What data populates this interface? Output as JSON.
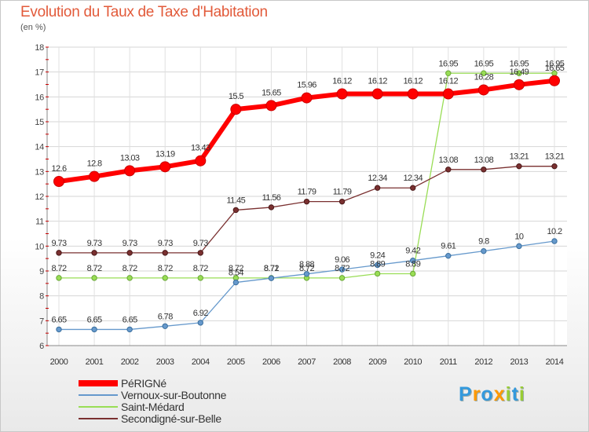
{
  "page": {
    "title": "Evolution du Taux de Taxe d'Habitation",
    "subtitle": "(en %)"
  },
  "chart_data": {
    "type": "line",
    "title": "Evolution du Taux de Taxe d'Habitation",
    "ylabel": "(en %)",
    "xlabel": "",
    "x": [
      2000,
      2001,
      2002,
      2003,
      2004,
      2005,
      2006,
      2007,
      2008,
      2009,
      2010,
      2011,
      2012,
      2013,
      2014
    ],
    "ylim": [
      6,
      18
    ],
    "yticks": [
      6,
      7,
      8,
      9,
      10,
      11,
      12,
      13,
      14,
      15,
      16,
      17,
      18
    ],
    "grid": true,
    "legend_position": "bottom-left",
    "series": [
      {
        "name": "PéRIGNé",
        "color": "#ff0000",
        "values": [
          12.6,
          12.8,
          13.03,
          13.19,
          13.43,
          15.5,
          15.65,
          15.96,
          16.12,
          16.12,
          16.12,
          16.12,
          16.28,
          16.49,
          16.65
        ],
        "labels": [
          "12.6",
          "12.8",
          "13.03",
          "13.19",
          "13.43",
          "15.5",
          "15.65",
          "15.96",
          "16.12",
          "16.12",
          "16.12",
          "16.12",
          "16.28",
          "16.49",
          "16.65"
        ]
      },
      {
        "name": "Vernoux-sur-Boutonne",
        "color": "#6699cc",
        "values": [
          6.65,
          6.65,
          6.65,
          6.78,
          6.92,
          8.54,
          8.71,
          8.88,
          9.06,
          9.24,
          9.42,
          9.61,
          9.8,
          10,
          10.2
        ],
        "labels": [
          "6.65",
          "6.65",
          "6.65",
          "6.78",
          "6.92",
          "8.54",
          "8.71",
          "8.88",
          "9.06",
          "9.24",
          "9.42",
          "9.61",
          "9.8",
          "10",
          "10.2"
        ]
      },
      {
        "name": "Saint-Médard",
        "color": "#99dd55",
        "values": [
          8.72,
          8.72,
          8.72,
          8.72,
          8.72,
          8.72,
          8.72,
          8.72,
          8.72,
          8.89,
          8.89,
          16.95,
          16.95,
          16.95,
          16.95
        ],
        "labels": [
          "8.72",
          "8.72",
          "8.72",
          "8.72",
          "8.72",
          "8.72",
          "8.72",
          "8.72",
          "8.72",
          "8.89",
          "8.89",
          "16.95",
          "16.95",
          "16.95",
          "16.95"
        ]
      },
      {
        "name": "Secondigné-sur-Belle",
        "color": "#7a3030",
        "values": [
          9.73,
          9.73,
          9.73,
          9.73,
          9.73,
          11.45,
          11.56,
          11.79,
          11.79,
          12.34,
          12.34,
          13.08,
          13.08,
          13.21,
          13.21
        ],
        "labels": [
          "9.73",
          "9.73",
          "9.73",
          "9.73",
          "9.73",
          "11.45",
          "11.56",
          "11.79",
          "11.79",
          "12.34",
          "12.34",
          "13.08",
          "13.08",
          "13.21",
          "13.21"
        ]
      }
    ]
  },
  "logo": {
    "letters": [
      "P",
      "r",
      "o",
      "x",
      "i",
      "t",
      "i"
    ],
    "colors": [
      "#3399dd",
      "#ff9900",
      "#3399dd",
      "#ff9900",
      "#99cc33",
      "#3399dd",
      "#99cc33"
    ]
  }
}
